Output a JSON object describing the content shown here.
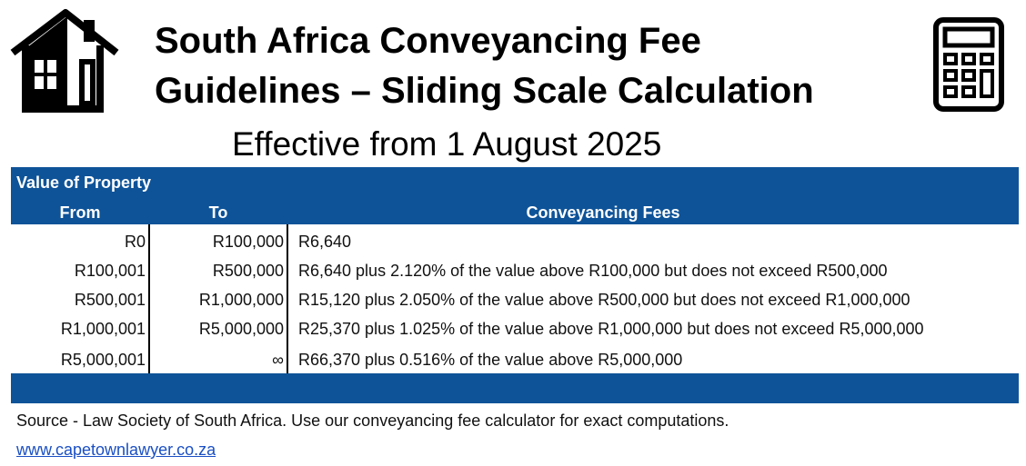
{
  "header": {
    "title": [
      "South Africa Conveyancing Fee",
      "Guidelines – Sliding Scale Calculation"
    ],
    "subtitle": "Effective from 1 August 2025"
  },
  "table": {
    "group_header": "Value of Property",
    "columns": [
      "From",
      "To",
      "Conveyancing Fees"
    ],
    "rows": [
      [
        "R0",
        "R100,000",
        "R6,640"
      ],
      [
        "R100,001",
        "R500,000",
        "R6,640 plus 2.120% of the value above R100,000 but does not exceed R500,000"
      ],
      [
        "R500,001",
        "R1,000,000",
        "R15,120 plus 2.050% of the value above R500,000 but does not exceed R1,000,000"
      ],
      [
        "R1,000,001",
        "R5,000,000",
        "R25,370 plus 1.025% of the value above R1,000,000 but does not exceed R5,000,000"
      ],
      [
        "R5,000,001",
        "∞",
        "R66,370 plus 0.516% of the value above R5,000,000"
      ]
    ]
  },
  "footer": {
    "source": "Source - Law Society of South Africa. Use our conveyancing fee calculator for exact computations.",
    "link": "www.capetownlawyer.co.za"
  }
}
